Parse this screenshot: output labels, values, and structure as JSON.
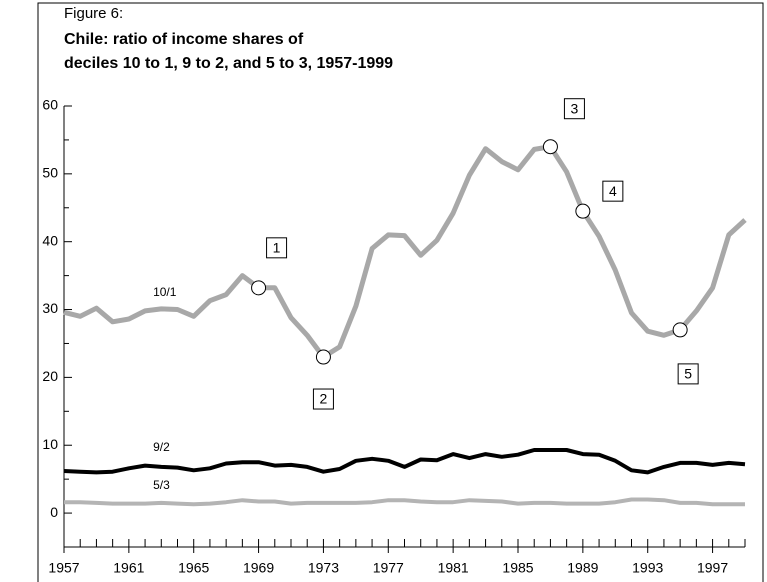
{
  "chart_data": {
    "type": "line",
    "title": "Figure 6:",
    "subtitle": [
      "Chile: ratio of income shares of",
      "deciles 10 to 1, 9 to 2, and 5 to 3, 1957-1999"
    ],
    "x": [
      1957,
      1958,
      1959,
      1960,
      1961,
      1962,
      1963,
      1964,
      1965,
      1966,
      1967,
      1968,
      1969,
      1970,
      1971,
      1972,
      1973,
      1974,
      1975,
      1976,
      1977,
      1978,
      1979,
      1980,
      1981,
      1982,
      1983,
      1984,
      1985,
      1986,
      1987,
      1988,
      1989,
      1990,
      1991,
      1992,
      1993,
      1994,
      1995,
      1996,
      1997,
      1998,
      1999
    ],
    "series": [
      {
        "name": "10/1",
        "color": "#a8a8a8",
        "values": [
          29.6,
          29,
          30.2,
          28.2,
          28.6,
          29.8,
          30.1,
          30,
          29,
          31.3,
          32.2,
          35,
          33.2,
          33.2,
          28.8,
          26.2,
          23,
          24.5,
          30.5,
          39,
          41,
          40.9,
          38,
          40.2,
          44.2,
          49.8,
          53.7,
          51.8,
          50.6,
          53.6,
          54,
          50.3,
          44.5,
          40.8,
          35.8,
          29.5,
          26.8,
          26.2,
          27,
          29.8,
          33.2,
          41,
          43.2
        ]
      },
      {
        "name": "9/2",
        "color": "#000000",
        "values": [
          6.2,
          6.1,
          6,
          6.1,
          6.6,
          7,
          6.8,
          6.7,
          6.3,
          6.6,
          7.3,
          7.5,
          7.5,
          7,
          7.1,
          6.8,
          6.1,
          6.5,
          7.7,
          8,
          7.7,
          6.8,
          7.9,
          7.8,
          8.7,
          8.1,
          8.7,
          8.3,
          8.6,
          9.3,
          9.3,
          9.3,
          8.7,
          8.6,
          7.7,
          6.3,
          6,
          6.8,
          7.4,
          7.4,
          7.1,
          7.4,
          7.2
        ]
      },
      {
        "name": "5/3",
        "color": "#b4b4b4",
        "values": [
          1.6,
          1.6,
          1.5,
          1.4,
          1.4,
          1.4,
          1.5,
          1.4,
          1.3,
          1.4,
          1.6,
          1.9,
          1.7,
          1.7,
          1.4,
          1.5,
          1.5,
          1.5,
          1.5,
          1.6,
          1.9,
          1.9,
          1.7,
          1.6,
          1.6,
          1.9,
          1.8,
          1.7,
          1.4,
          1.5,
          1.5,
          1.4,
          1.4,
          1.4,
          1.6,
          2,
          2,
          1.9,
          1.5,
          1.5,
          1.3,
          1.3,
          1.3
        ]
      }
    ],
    "annotations": [
      {
        "text": "1",
        "x": 1969
      },
      {
        "text": "2",
        "x": 1973
      },
      {
        "text": "3",
        "x": 1987
      },
      {
        "text": "4",
        "x": 1989
      },
      {
        "text": "5",
        "x": 1995
      }
    ],
    "xlim": [
      1957,
      1999
    ],
    "xticks": [
      1957,
      1961,
      1965,
      1969,
      1973,
      1977,
      1981,
      1985,
      1989,
      1993,
      1997
    ],
    "ylim": [
      -5,
      60
    ],
    "yticks": [
      0,
      10,
      20,
      30,
      40,
      50,
      60
    ]
  }
}
